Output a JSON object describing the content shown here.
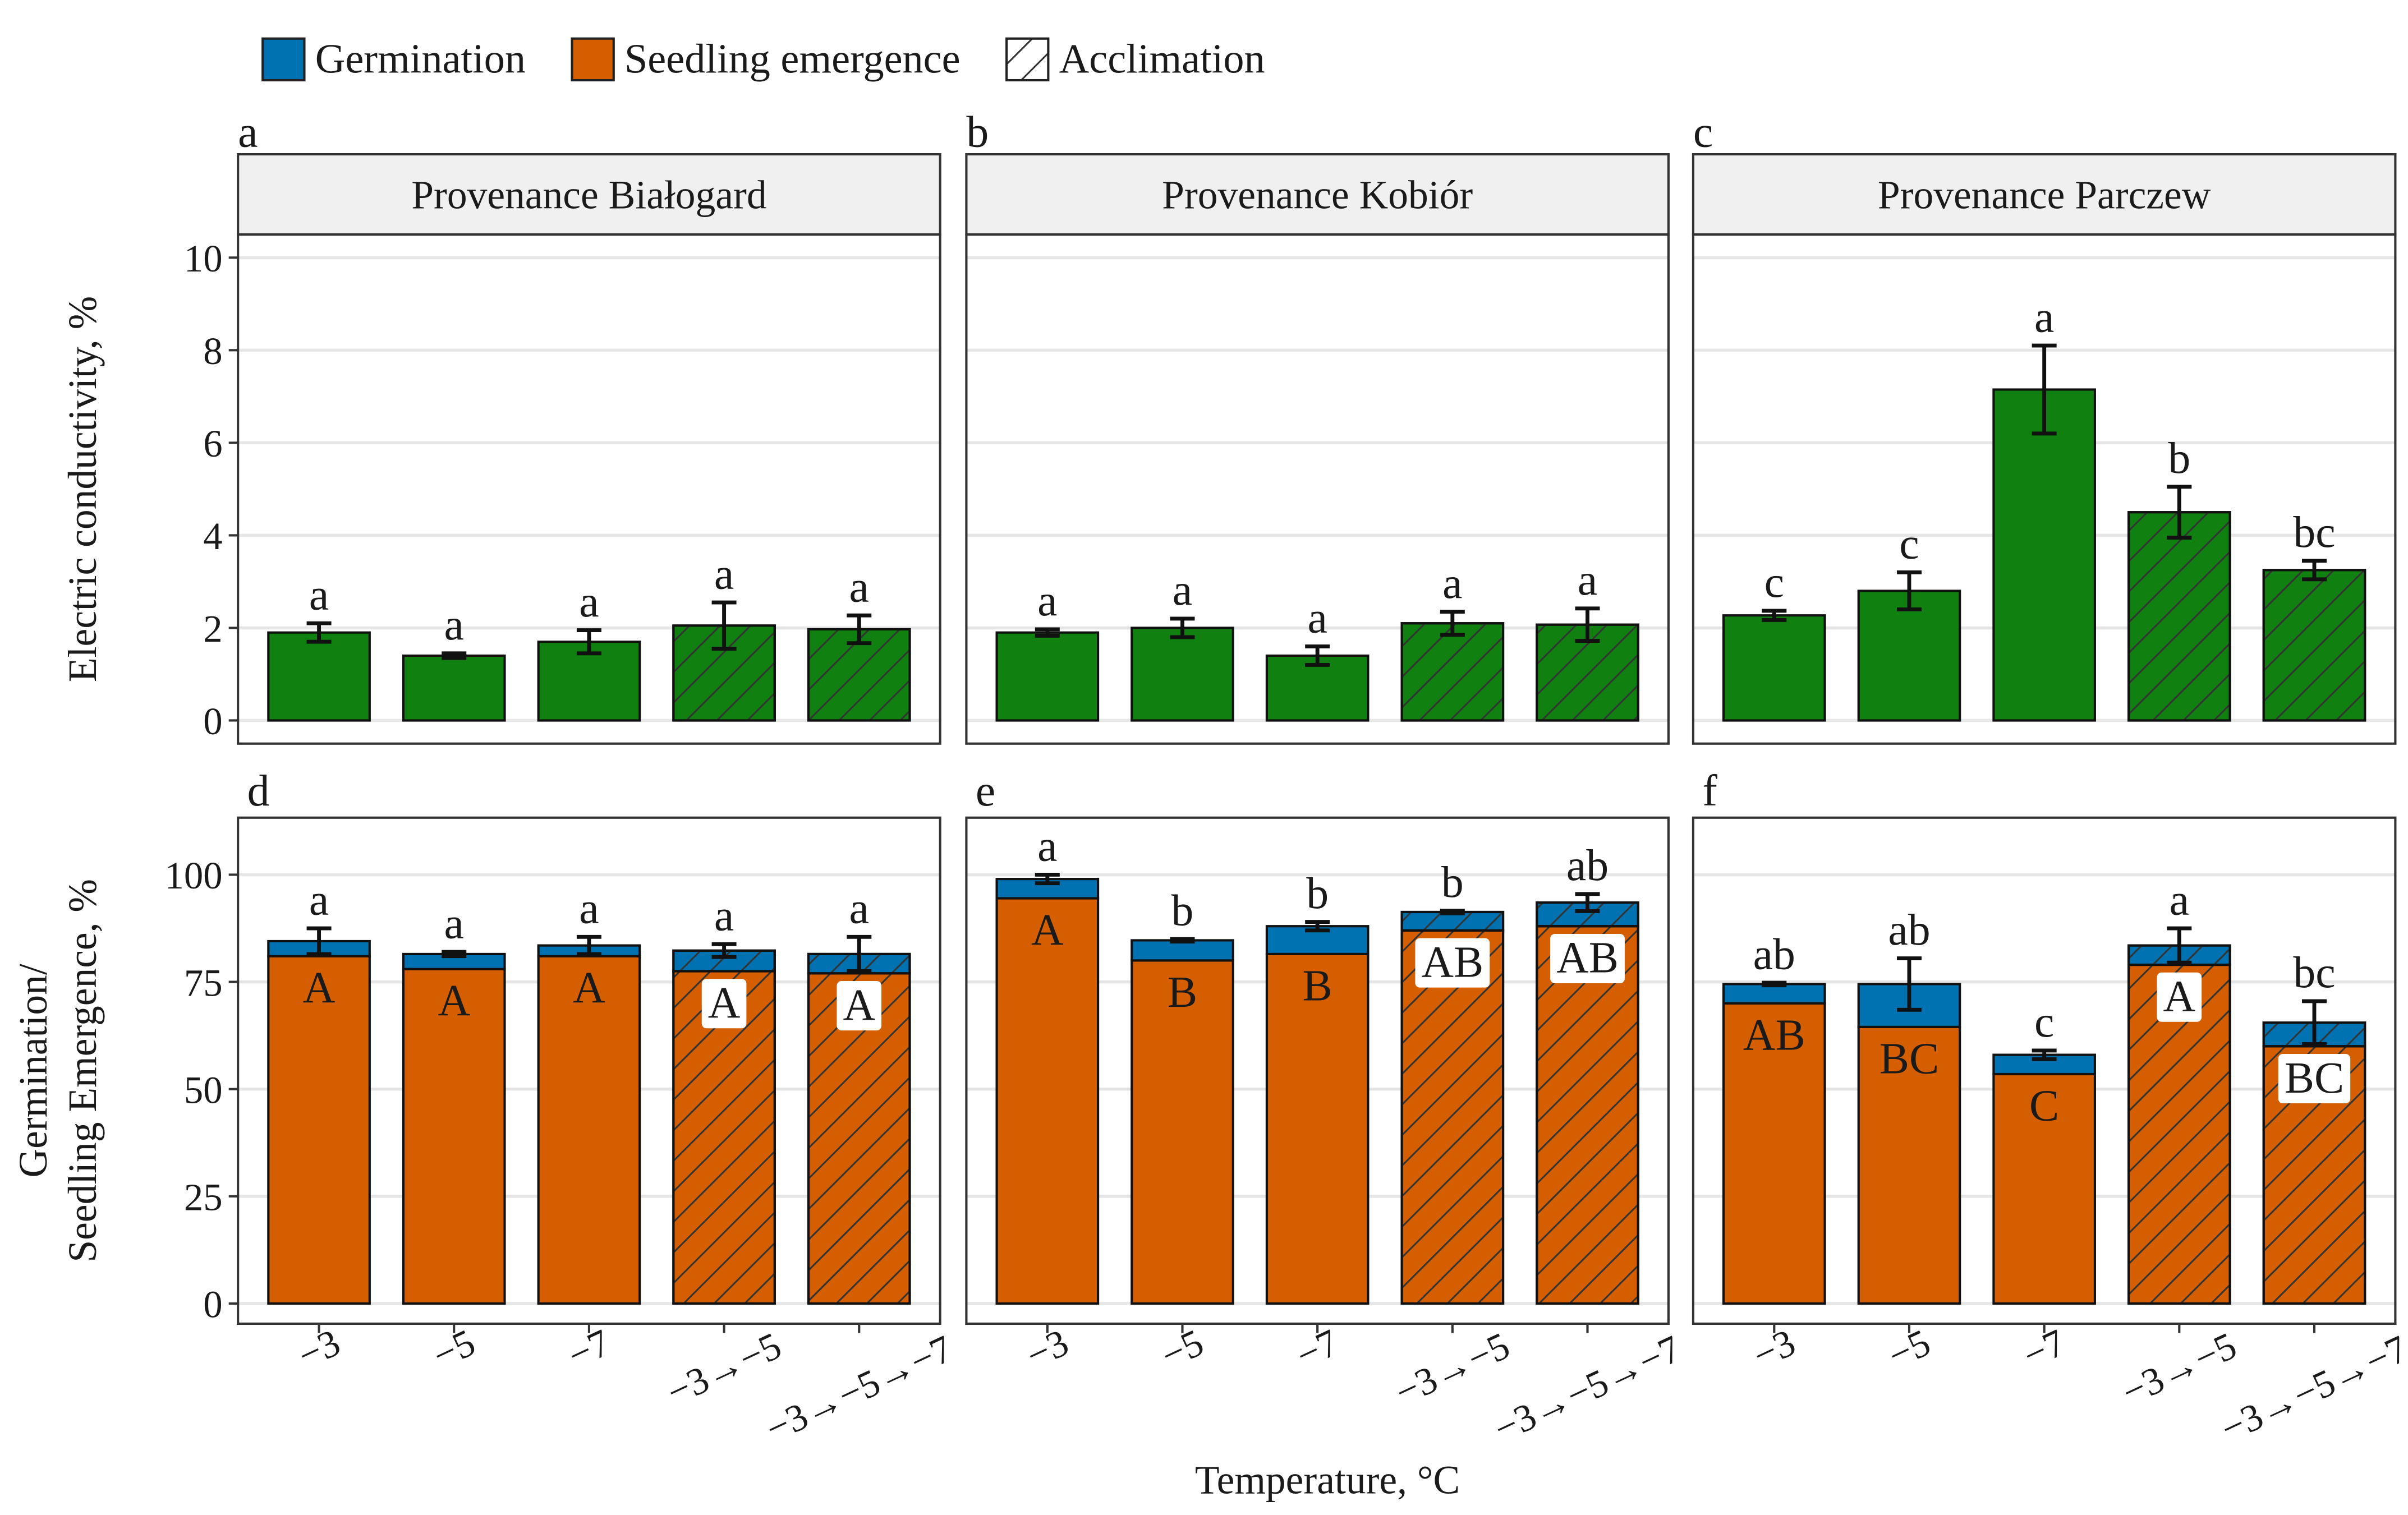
{
  "legend": {
    "items": [
      {
        "name": "Germination",
        "color": "#0072b2"
      },
      {
        "name": "Seedling emergence",
        "color": "#d55e00"
      },
      {
        "name": "Acclimation",
        "pattern": "hatch"
      }
    ]
  },
  "xlabel": "Temperature, °C",
  "chart_data": [
    {
      "type": "bar",
      "tag": "a",
      "title": "Provenance Białogard",
      "ylabel": [
        "Electric conductivity, %"
      ],
      "categories": [
        "−3",
        "−5",
        "−7",
        "−3→−5",
        "−3→−5→−7"
      ],
      "acclimation": [
        false,
        false,
        false,
        true,
        true
      ],
      "series": [
        {
          "color": "#108010",
          "values": [
            1.9,
            1.4,
            1.7,
            2.05,
            1.97
          ],
          "errors": [
            0.2,
            0.05,
            0.25,
            0.5,
            0.3
          ]
        }
      ],
      "letters": [
        "a",
        "a",
        "a",
        "a",
        "a"
      ],
      "ylim": [
        -0.5,
        10.5
      ],
      "yticks": [
        0,
        2,
        4,
        6,
        8,
        10
      ],
      "grid": true
    },
    {
      "type": "bar",
      "tag": "b",
      "title": "Provenance Kobiór",
      "categories": [
        "−3",
        "−5",
        "−7",
        "−3→−5",
        "−3→−5→−7"
      ],
      "acclimation": [
        false,
        false,
        false,
        true,
        true
      ],
      "series": [
        {
          "color": "#108010",
          "values": [
            1.9,
            2.0,
            1.4,
            2.1,
            2.07
          ],
          "errors": [
            0.07,
            0.2,
            0.2,
            0.25,
            0.35
          ]
        }
      ],
      "letters": [
        "a",
        "a",
        "a",
        "a",
        "a"
      ],
      "ylim": [
        -0.5,
        10.5
      ],
      "yticks": [
        0,
        2,
        4,
        6,
        8,
        10
      ],
      "grid": true
    },
    {
      "type": "bar",
      "tag": "c",
      "title": "Provenance Parczew",
      "categories": [
        "−3",
        "−5",
        "−7",
        "−3→−5",
        "−3→−5→−7"
      ],
      "acclimation": [
        false,
        false,
        false,
        true,
        true
      ],
      "series": [
        {
          "color": "#108010",
          "values": [
            2.27,
            2.8,
            7.15,
            4.5,
            3.25
          ],
          "errors": [
            0.1,
            0.4,
            0.95,
            0.55,
            0.2
          ]
        }
      ],
      "letters": [
        "c",
        "c",
        "a",
        "b",
        "bc"
      ],
      "ylim": [
        -0.5,
        10.5
      ],
      "yticks": [
        0,
        2,
        4,
        6,
        8,
        10
      ],
      "grid": true
    },
    {
      "type": "stacked_bar",
      "tag": "d",
      "ylabel": [
        "Germination/",
        "Seedling Emergence, %"
      ],
      "categories": [
        "−3",
        "−5",
        "−7",
        "−3→−5",
        "−3→−5→−7"
      ],
      "acclimation": [
        false,
        false,
        false,
        true,
        true
      ],
      "series": [
        {
          "name": "Seedling emergence",
          "color": "#d55e00",
          "values": [
            81,
            78,
            81,
            77.5,
            77
          ]
        },
        {
          "name": "Germination",
          "color": "#0072b2",
          "values": [
            3.5,
            3.5,
            2.5,
            4.8,
            4.5
          ],
          "errors": [
            3,
            0.5,
            2,
            1.5,
            4
          ]
        }
      ],
      "letters": [
        "a",
        "a",
        "a",
        "a",
        "a"
      ],
      "inner_letters": [
        "A",
        "A",
        "A",
        "A",
        "A"
      ],
      "ylim": [
        -4.7,
        113.3
      ],
      "yticks": [
        0,
        25,
        50,
        75,
        100
      ],
      "grid": true
    },
    {
      "type": "stacked_bar",
      "tag": "e",
      "categories": [
        "−3",
        "−5",
        "−7",
        "−3→−5",
        "−3→−5→−7"
      ],
      "acclimation": [
        false,
        false,
        false,
        true,
        true
      ],
      "series": [
        {
          "name": "Seedling emergence",
          "color": "#d55e00",
          "values": [
            94.5,
            80,
            81.5,
            87,
            88
          ]
        },
        {
          "name": "Germination",
          "color": "#0072b2",
          "values": [
            4.5,
            4.7,
            6.5,
            4.3,
            5.5
          ],
          "errors": [
            1,
            0.3,
            1,
            0.3,
            2
          ]
        }
      ],
      "letters": [
        "a",
        "b",
        "b",
        "b",
        "ab"
      ],
      "inner_letters": [
        "A",
        "B",
        "B",
        "AB",
        "AB"
      ],
      "ylim": [
        -4.7,
        113.3
      ],
      "yticks": [
        0,
        25,
        50,
        75,
        100
      ],
      "grid": true
    },
    {
      "type": "stacked_bar",
      "tag": "f",
      "categories": [
        "−3",
        "−5",
        "−7",
        "−3→−5",
        "−3→−5→−7"
      ],
      "acclimation": [
        false,
        false,
        false,
        true,
        true
      ],
      "series": [
        {
          "name": "Seedling emergence",
          "color": "#d55e00",
          "values": [
            70,
            64.5,
            53.5,
            79,
            60
          ]
        },
        {
          "name": "Germination",
          "color": "#0072b2",
          "values": [
            4.5,
            10,
            4.5,
            4.5,
            5.5
          ],
          "errors": [
            0.3,
            6,
            1,
            4,
            5
          ]
        }
      ],
      "letters": [
        "ab",
        "ab",
        "c",
        "a",
        "bc"
      ],
      "inner_letters": [
        "AB",
        "BC",
        "C",
        "A",
        "BC"
      ],
      "ylim": [
        -4.7,
        113.3
      ],
      "yticks": [
        0,
        25,
        50,
        75,
        100
      ],
      "grid": true
    }
  ]
}
